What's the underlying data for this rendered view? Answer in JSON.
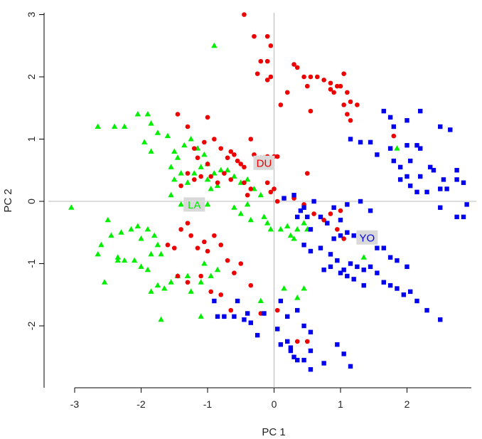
{
  "chart_data": {
    "type": "scatter",
    "title": "",
    "xlabel": "PC 1",
    "ylabel": "PC 2",
    "xlim": [
      -3.05,
      2.9
    ],
    "ylim": [
      -2.95,
      3.15
    ],
    "x_ticks": [
      -3,
      -2,
      -1,
      0,
      1,
      2
    ],
    "y_ticks": [
      -2,
      -1,
      0,
      1,
      2,
      3
    ],
    "reference_lines": {
      "x": 0,
      "y": 0
    },
    "grid": false,
    "legend": "none",
    "series": [
      {
        "name": "LA",
        "color": "#00ee00",
        "marker": "triangle",
        "label_position": [
          -1.2,
          -0.05
        ],
        "points": [
          [
            -3.05,
            -0.1
          ],
          [
            -2.65,
            1.2
          ],
          [
            -2.4,
            1.2
          ],
          [
            -2.25,
            1.2
          ],
          [
            -2.05,
            1.4
          ],
          [
            -1.9,
            1.4
          ],
          [
            -1.85,
            1.25
          ],
          [
            -1.75,
            1.1
          ],
          [
            -1.95,
            0.95
          ],
          [
            -1.85,
            0.8
          ],
          [
            -1.6,
            1.05
          ],
          [
            -1.5,
            0.8
          ],
          [
            -1.45,
            0.7
          ],
          [
            -1.35,
            0.9
          ],
          [
            -1.25,
            1.0
          ],
          [
            -1.15,
            0.85
          ],
          [
            -1.05,
            0.75
          ],
          [
            -1.0,
            0.6
          ],
          [
            -0.9,
            0.45
          ],
          [
            -0.8,
            0.5
          ],
          [
            -0.7,
            0.5
          ],
          [
            -0.6,
            0.4
          ],
          [
            -0.5,
            0.3
          ],
          [
            -0.4,
            0.35
          ],
          [
            -0.3,
            0.2
          ],
          [
            -0.2,
            0.1
          ],
          [
            -1.55,
            0.55
          ],
          [
            -1.5,
            0.35
          ],
          [
            -1.4,
            0.45
          ],
          [
            -1.3,
            0.3
          ],
          [
            -1.2,
            0.45
          ],
          [
            -1.1,
            0.55
          ],
          [
            -1.0,
            0.35
          ],
          [
            -0.95,
            0.2
          ],
          [
            -0.85,
            0.25
          ],
          [
            -0.9,
            2.5
          ],
          [
            -1.55,
            0.1
          ],
          [
            -1.4,
            -0.05
          ],
          [
            -1.1,
            -0.1
          ],
          [
            -1.0,
            -0.05
          ],
          [
            -0.6,
            -0.1
          ],
          [
            -0.5,
            -0.2
          ],
          [
            -0.4,
            -0.05
          ],
          [
            -0.35,
            -0.3
          ],
          [
            -0.15,
            -0.25
          ],
          [
            -0.1,
            -0.35
          ],
          [
            -0.05,
            -0.45
          ],
          [
            0.1,
            -0.45
          ],
          [
            0.2,
            -0.4
          ],
          [
            0.25,
            -0.55
          ],
          [
            0.3,
            -0.6
          ],
          [
            0.35,
            -0.45
          ],
          [
            0.45,
            -0.35
          ],
          [
            0.5,
            -0.45
          ],
          [
            -2.5,
            -0.3
          ],
          [
            -2.45,
            -0.55
          ],
          [
            -2.6,
            -0.7
          ],
          [
            -2.65,
            -0.85
          ],
          [
            -2.3,
            -0.5
          ],
          [
            -2.15,
            -0.45
          ],
          [
            -2.05,
            -0.4
          ],
          [
            -2.0,
            -0.6
          ],
          [
            -1.9,
            -0.45
          ],
          [
            -1.8,
            -0.55
          ],
          [
            -1.75,
            -0.7
          ],
          [
            -2.35,
            -0.9
          ],
          [
            -2.35,
            -0.95
          ],
          [
            -2.25,
            -0.95
          ],
          [
            -2.1,
            -0.95
          ],
          [
            -2.0,
            -1.05
          ],
          [
            -1.9,
            -1.1
          ],
          [
            -1.85,
            -0.85
          ],
          [
            -1.7,
            -0.85
          ],
          [
            -2.55,
            -1.3
          ],
          [
            -1.85,
            -1.45
          ],
          [
            -1.75,
            -1.35
          ],
          [
            -1.65,
            -1.4
          ],
          [
            -1.55,
            -1.3
          ],
          [
            -1.45,
            -1.2
          ],
          [
            -1.3,
            -1.2
          ],
          [
            -1.25,
            -1.45
          ],
          [
            -1.1,
            -1.3
          ],
          [
            -1.05,
            -1.0
          ],
          [
            -0.95,
            -1.2
          ],
          [
            -0.85,
            -1.1
          ],
          [
            -1.1,
            -1.85
          ],
          [
            -1.7,
            -1.9
          ],
          [
            -0.2,
            -1.6
          ],
          [
            0.15,
            -1.4
          ],
          [
            0.35,
            -1.55
          ],
          [
            0.45,
            -1.4
          ],
          [
            1.35,
            -0.9
          ],
          [
            1.85,
            0.85
          ]
        ]
      },
      {
        "name": "DU",
        "color": "#ee0000",
        "marker": "circle",
        "label_position": [
          -0.15,
          0.62
        ],
        "points": [
          [
            -0.45,
            3.0
          ],
          [
            -0.3,
            2.65
          ],
          [
            -0.1,
            2.65
          ],
          [
            -0.05,
            2.5
          ],
          [
            -0.2,
            2.25
          ],
          [
            -0.1,
            2.25
          ],
          [
            -0.1,
            1.95
          ],
          [
            -0.05,
            2.0
          ],
          [
            -0.25,
            2.05
          ],
          [
            0.3,
            2.2
          ],
          [
            0.35,
            2.15
          ],
          [
            0.45,
            2.0
          ],
          [
            0.55,
            2.0
          ],
          [
            0.5,
            1.85
          ],
          [
            0.2,
            1.75
          ],
          [
            0.1,
            1.55
          ],
          [
            0.65,
            2.0
          ],
          [
            0.75,
            1.95
          ],
          [
            0.85,
            1.9
          ],
          [
            0.95,
            1.85
          ],
          [
            0.85,
            1.8
          ],
          [
            0.9,
            1.75
          ],
          [
            1.05,
            2.05
          ],
          [
            1.0,
            1.85
          ],
          [
            1.1,
            1.75
          ],
          [
            1.05,
            1.55
          ],
          [
            1.15,
            1.6
          ],
          [
            1.25,
            1.55
          ],
          [
            1.1,
            1.4
          ],
          [
            1.15,
            1.3
          ],
          [
            0.55,
            1.45
          ],
          [
            1.8,
            1.05
          ],
          [
            -1.45,
            1.4
          ],
          [
            -1.3,
            1.2
          ],
          [
            -1.0,
            1.35
          ],
          [
            -1.05,
            0.95
          ],
          [
            -1.2,
            0.85
          ],
          [
            -1.15,
            0.7
          ],
          [
            -1.0,
            0.6
          ],
          [
            -0.9,
            1.0
          ],
          [
            -0.8,
            0.85
          ],
          [
            -0.7,
            0.7
          ],
          [
            -0.65,
            0.8
          ],
          [
            -0.6,
            0.75
          ],
          [
            -0.55,
            0.65
          ],
          [
            -0.5,
            0.6
          ],
          [
            -0.45,
            0.55
          ],
          [
            -0.35,
            1.0
          ],
          [
            -0.3,
            0.75
          ],
          [
            -0.2,
            0.7
          ],
          [
            -0.15,
            0.7
          ],
          [
            -0.1,
            0.72
          ],
          [
            0.0,
            0.72
          ],
          [
            0.05,
            0.72
          ],
          [
            0.5,
            0.45
          ],
          [
            -1.4,
            0.25
          ],
          [
            -1.3,
            0.45
          ],
          [
            -1.2,
            0.35
          ],
          [
            -1.1,
            0.4
          ],
          [
            -0.95,
            0.4
          ],
          [
            -0.85,
            0.3
          ],
          [
            -0.75,
            0.45
          ],
          [
            -0.65,
            0.35
          ],
          [
            -0.45,
            0.3
          ],
          [
            -0.4,
            0.1
          ],
          [
            -0.35,
            0.2
          ],
          [
            -0.1,
            0.3
          ],
          [
            -0.05,
            0.15
          ],
          [
            0.0,
            0.2
          ],
          [
            0.05,
            0.0
          ],
          [
            0.15,
            0.05
          ],
          [
            0.3,
            0.05
          ],
          [
            0.45,
            -0.05
          ],
          [
            0.6,
            -0.2
          ],
          [
            0.75,
            -0.3
          ],
          [
            0.85,
            -0.2
          ],
          [
            0.95,
            -0.45
          ],
          [
            1.0,
            -0.15
          ],
          [
            1.05,
            -0.6
          ],
          [
            -1.4,
            -0.45
          ],
          [
            -1.3,
            -0.35
          ],
          [
            -1.25,
            -0.55
          ],
          [
            -1.15,
            -0.75
          ],
          [
            -1.05,
            -0.65
          ],
          [
            -1.0,
            -0.8
          ],
          [
            -0.9,
            -0.55
          ],
          [
            -0.8,
            -0.7
          ],
          [
            -0.7,
            -0.95
          ],
          [
            -0.6,
            -1.15
          ],
          [
            -0.5,
            -1.0
          ],
          [
            -1.6,
            -0.7
          ],
          [
            -1.5,
            -0.75
          ],
          [
            -1.45,
            -1.2
          ],
          [
            -1.3,
            -1.3
          ],
          [
            -1.1,
            -1.2
          ],
          [
            -0.95,
            -1.45
          ],
          [
            -0.8,
            -1.5
          ],
          [
            -0.75,
            -1.85
          ],
          [
            -0.65,
            -1.75
          ],
          [
            -0.35,
            -1.35
          ],
          [
            -0.2,
            -1.8
          ],
          [
            0.05,
            -1.75
          ],
          [
            0.35,
            -2.25
          ],
          [
            0.5,
            -2.25
          ]
        ]
      },
      {
        "name": "YO",
        "color": "#0000ee",
        "marker": "square",
        "label_position": [
          1.4,
          -0.58
        ],
        "points": [
          [
            1.65,
            1.45
          ],
          [
            1.75,
            1.35
          ],
          [
            1.8,
            1.2
          ],
          [
            2.0,
            1.3
          ],
          [
            2.2,
            1.45
          ],
          [
            2.5,
            1.2
          ],
          [
            2.65,
            1.15
          ],
          [
            1.15,
            1.0
          ],
          [
            1.3,
            0.95
          ],
          [
            1.45,
            0.95
          ],
          [
            1.55,
            0.75
          ],
          [
            1.75,
            0.85
          ],
          [
            2.0,
            0.9
          ],
          [
            2.15,
            0.9
          ],
          [
            2.2,
            0.85
          ],
          [
            1.8,
            0.65
          ],
          [
            1.9,
            0.55
          ],
          [
            2.05,
            0.65
          ],
          [
            2.2,
            0.4
          ],
          [
            2.35,
            0.55
          ],
          [
            2.4,
            0.5
          ],
          [
            2.55,
            0.35
          ],
          [
            2.75,
            0.5
          ],
          [
            2.85,
            0.3
          ],
          [
            1.9,
            0.35
          ],
          [
            2.0,
            0.4
          ],
          [
            2.05,
            0.25
          ],
          [
            2.15,
            0.15
          ],
          [
            2.3,
            0.15
          ],
          [
            2.5,
            0.2
          ],
          [
            2.6,
            0.2
          ],
          [
            2.75,
            0.35
          ],
          [
            2.9,
            -0.05
          ],
          [
            0.45,
            -0.1
          ],
          [
            0.9,
            -0.1
          ],
          [
            1.1,
            -0.05
          ],
          [
            1.3,
            0.0
          ],
          [
            1.45,
            -0.15
          ],
          [
            2.5,
            -0.1
          ],
          [
            2.75,
            -0.25
          ],
          [
            2.85,
            -0.25
          ],
          [
            0.35,
            -0.25
          ],
          [
            0.5,
            -0.25
          ],
          [
            0.55,
            -0.45
          ],
          [
            0.7,
            -0.25
          ],
          [
            0.8,
            -0.35
          ],
          [
            0.9,
            -0.6
          ],
          [
            1.0,
            -0.55
          ],
          [
            1.1,
            -0.5
          ],
          [
            1.2,
            -0.55
          ],
          [
            1.35,
            -0.55
          ],
          [
            1.45,
            -0.65
          ],
          [
            1.55,
            -0.75
          ],
          [
            1.65,
            -0.75
          ],
          [
            1.75,
            -0.9
          ],
          [
            1.85,
            -0.95
          ],
          [
            2.0,
            -1.05
          ],
          [
            0.45,
            -0.7
          ],
          [
            0.55,
            -0.8
          ],
          [
            0.7,
            -0.75
          ],
          [
            0.85,
            -0.85
          ],
          [
            0.95,
            -0.95
          ],
          [
            1.05,
            -1.1
          ],
          [
            1.15,
            -1.0
          ],
          [
            1.25,
            -1.05
          ],
          [
            1.35,
            -1.1
          ],
          [
            1.45,
            -1.05
          ],
          [
            1.55,
            -1.15
          ],
          [
            1.65,
            -1.3
          ],
          [
            1.75,
            -1.35
          ],
          [
            1.85,
            -1.4
          ],
          [
            1.95,
            -1.5
          ],
          [
            2.05,
            -1.45
          ],
          [
            2.15,
            -1.6
          ],
          [
            2.3,
            -1.75
          ],
          [
            2.5,
            -1.9
          ],
          [
            0.75,
            -1.1
          ],
          [
            0.85,
            -1.05
          ],
          [
            1.0,
            -1.15
          ],
          [
            1.1,
            -1.2
          ],
          [
            1.2,
            -1.25
          ],
          [
            1.35,
            -1.35
          ],
          [
            0.1,
            -1.6
          ],
          [
            0.2,
            -1.85
          ],
          [
            0.35,
            -1.75
          ],
          [
            0.45,
            -2.0
          ],
          [
            0.55,
            -2.1
          ],
          [
            0.95,
            -2.3
          ],
          [
            1.05,
            -2.45
          ],
          [
            0.2,
            -2.25
          ],
          [
            0.25,
            -2.35
          ],
          [
            0.3,
            -2.5
          ],
          [
            0.55,
            -2.4
          ],
          [
            0.75,
            -2.6
          ],
          [
            -0.55,
            -1.6
          ],
          [
            -0.45,
            -1.9
          ],
          [
            -0.35,
            -1.95
          ],
          [
            -0.15,
            -1.8
          ],
          [
            0.05,
            -2.05
          ],
          [
            -0.25,
            -2.15
          ],
          [
            0.1,
            -2.3
          ],
          [
            1.15,
            -2.65
          ],
          [
            0.55,
            -2.7
          ],
          [
            0.35,
            -2.55
          ],
          [
            0.25,
            -2.4
          ],
          [
            0.45,
            -2.55
          ],
          [
            -0.9,
            -1.6
          ],
          [
            -0.85,
            -1.85
          ],
          [
            -0.75,
            -1.85
          ],
          [
            -0.6,
            -1.85
          ],
          [
            -0.4,
            -1.8
          ],
          [
            0.15,
            0.05
          ],
          [
            0.3,
            0.1
          ],
          [
            0.4,
            -0.15
          ],
          [
            0.6,
            0.0
          ],
          [
            1.0,
            -0.3
          ]
        ]
      }
    ]
  }
}
